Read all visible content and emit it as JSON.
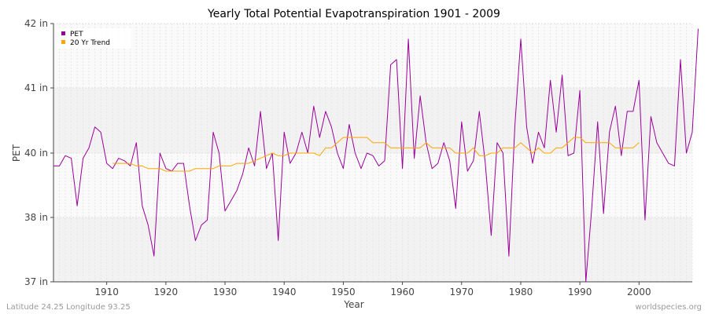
{
  "chart_data": {
    "type": "line",
    "title": "Yearly Total Potential Evapotranspiration 1901 - 2009",
    "xlabel": "Year",
    "ylabel": "PET",
    "xlim": [
      1901,
      2009
    ],
    "ylim": [
      37,
      42
    ],
    "y_ticks": [
      {
        "value": 37,
        "label": "37 in"
      },
      {
        "value": 38,
        "label": "38 in"
      },
      {
        "value": 40,
        "label": "40 in"
      },
      {
        "value": 41,
        "label": "41 in"
      },
      {
        "value": 42,
        "label": "42 in"
      }
    ],
    "x_ticks": [
      {
        "value": 1910,
        "label": "1910"
      },
      {
        "value": 1920,
        "label": "1920"
      },
      {
        "value": 1930,
        "label": "1930"
      },
      {
        "value": 1940,
        "label": "1940"
      },
      {
        "value": 1950,
        "label": "1950"
      },
      {
        "value": 1960,
        "label": "1960"
      },
      {
        "value": 1970,
        "label": "1970"
      },
      {
        "value": 1980,
        "label": "1980"
      },
      {
        "value": 1990,
        "label": "1990"
      },
      {
        "value": 2000,
        "label": "2000"
      }
    ],
    "grid": true,
    "legend_position": "top-left",
    "series": [
      {
        "name": "PET",
        "color": "#990099",
        "start_year": 1901,
        "values": [
          39.6,
          39.6,
          39.92,
          39.84,
          38.36,
          39.84,
          40.08,
          40.4,
          40.32,
          39.68,
          39.52,
          39.84,
          39.76,
          39.6,
          40.16,
          38.36,
          37.88,
          37.4,
          40.0,
          39.52,
          39.44,
          39.68,
          39.68,
          38.36,
          37.64,
          37.88,
          37.96,
          40.32,
          40.0,
          38.2,
          38.52,
          38.84,
          39.36,
          40.08,
          39.6,
          40.64,
          39.52,
          40.0,
          37.64,
          40.32,
          39.68,
          40.0,
          40.32,
          40.0,
          40.72,
          40.24,
          40.64,
          40.4,
          40.0,
          39.52,
          40.44,
          40.0,
          39.52,
          40.0,
          39.92,
          39.6,
          39.76,
          41.36,
          41.44,
          39.52,
          41.76,
          39.84,
          40.88,
          40.16,
          39.52,
          39.68,
          40.16,
          39.76,
          38.28,
          40.48,
          39.44,
          39.76,
          40.64,
          39.68,
          37.72,
          40.16,
          40.0,
          37.4,
          40.4,
          41.76,
          40.4,
          39.68,
          40.32,
          40.08,
          41.12,
          40.32,
          41.2,
          39.92,
          40.0,
          40.96,
          37.0,
          38.28,
          40.48,
          38.12,
          40.32,
          40.72,
          39.92,
          40.64,
          40.64,
          41.12,
          37.96,
          40.56,
          40.16,
          40.0,
          39.68,
          39.6,
          41.44,
          40.0,
          40.32,
          41.92
        ]
      },
      {
        "name": "20 Yr Trend",
        "color": "#ffa500",
        "start_year": 1901,
        "values": [
          null,
          null,
          null,
          null,
          null,
          null,
          null,
          null,
          null,
          null,
          39.68,
          39.68,
          39.68,
          39.68,
          39.6,
          39.6,
          39.52,
          39.52,
          39.52,
          39.44,
          39.44,
          39.44,
          39.44,
          39.44,
          39.52,
          39.52,
          39.52,
          39.52,
          39.6,
          39.6,
          39.6,
          39.68,
          39.68,
          39.68,
          39.76,
          39.84,
          39.92,
          40.0,
          39.92,
          39.92,
          40.0,
          40.0,
          40.0,
          40.0,
          40.0,
          39.92,
          40.08,
          40.08,
          40.16,
          40.24,
          40.24,
          40.24,
          40.24,
          40.24,
          40.16,
          40.16,
          40.16,
          40.08,
          40.08,
          40.08,
          40.08,
          40.08,
          40.08,
          40.16,
          40.08,
          40.08,
          40.08,
          40.08,
          40.0,
          40.0,
          40.0,
          40.08,
          39.92,
          39.92,
          40.0,
          40.0,
          40.08,
          40.08,
          40.08,
          40.16,
          40.08,
          40.0,
          40.08,
          40.0,
          40.0,
          40.08,
          40.08,
          40.16,
          40.24,
          40.24,
          40.16,
          40.16,
          40.16,
          40.16,
          40.16,
          40.08,
          40.08,
          40.08,
          40.08,
          40.16,
          null,
          null,
          null,
          null,
          null,
          null,
          null,
          null,
          null,
          null
        ]
      }
    ]
  },
  "footer": {
    "left": "Latitude 24.25 Longitude 93.25",
    "right": "worldspecies.org"
  }
}
